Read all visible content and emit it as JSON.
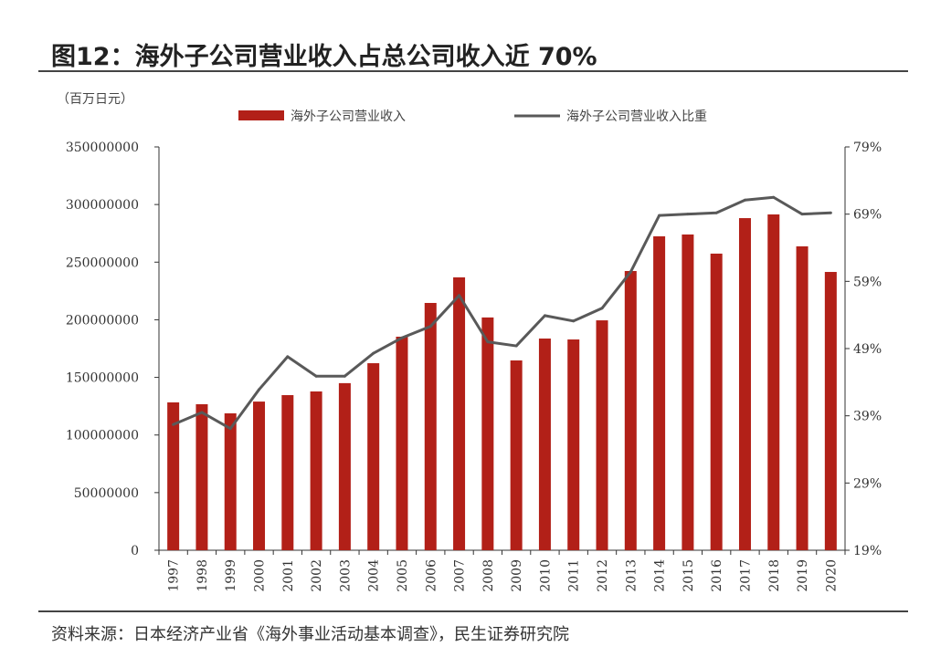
{
  "title": "图12：海外子公司营业收入占总公司收入近 70%",
  "source": "资料来源：日本经济产业省《海外事业活动基本调查》，民生证券研究院",
  "chart_data": {
    "type": "bar",
    "title": "图12：海外子公司营业收入占总公司收入近 70%",
    "unit_label": "（百万日元）",
    "categories": [
      "1997",
      "1998",
      "1999",
      "2000",
      "2001",
      "2002",
      "2003",
      "2004",
      "2005",
      "2006",
      "2007",
      "2008",
      "2009",
      "2010",
      "2011",
      "2012",
      "2013",
      "2014",
      "2015",
      "2016",
      "2017",
      "2018",
      "2019",
      "2020"
    ],
    "series": [
      {
        "name": "海外子公司营业收入",
        "type": "bar",
        "axis": "left",
        "color": "#B22018",
        "values": [
          128300000,
          126700000,
          118800000,
          129000000,
          134600000,
          137800000,
          145000000,
          162300000,
          185300000,
          214600000,
          236800000,
          202000000,
          164700000,
          183700000,
          182900000,
          199500000,
          242300000,
          272400000,
          274000000,
          257400000,
          288200000,
          291400000,
          263700000,
          241500000
        ]
      },
      {
        "name": "海外子公司营业收入比重",
        "type": "line",
        "axis": "right",
        "color": "#595959",
        "values": [
          37.7,
          39.5,
          37.1,
          42.9,
          47.8,
          44.9,
          44.9,
          48.3,
          50.6,
          52.3,
          56.9,
          50.0,
          49.4,
          53.9,
          53.1,
          55.0,
          60.4,
          68.8,
          69.0,
          69.2,
          71.1,
          71.5,
          69.0,
          69.2
        ]
      }
    ],
    "left_axis": {
      "ylim": [
        0,
        350000000
      ],
      "ticks": [
        "0",
        "50000000",
        "100000000",
        "150000000",
        "200000000",
        "250000000",
        "300000000",
        "350000000"
      ]
    },
    "right_axis": {
      "ylim": [
        19,
        79
      ],
      "ticks": [
        "19%",
        "29%",
        "39%",
        "49%",
        "59%",
        "69%",
        "79%"
      ]
    },
    "legend_position": "top",
    "grid": false
  }
}
